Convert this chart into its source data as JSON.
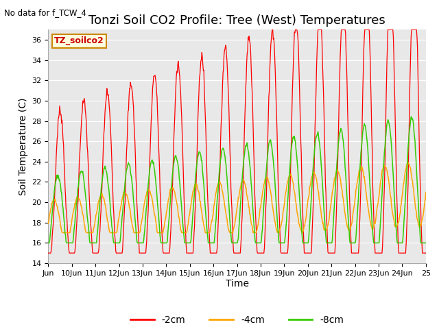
{
  "title": "Tonzi Soil CO2 Profile: Tree (West) Temperatures",
  "xlabel": "Time",
  "ylabel": "Soil Temperature (C)",
  "note": "No data for f_TCW_4",
  "box_label": "TZ_soilco2",
  "ylim": [
    14,
    37
  ],
  "yticks": [
    14,
    16,
    18,
    20,
    22,
    24,
    26,
    28,
    30,
    32,
    34,
    36
  ],
  "xtick_labels": [
    "Jun",
    "10Jun",
    "11Jun",
    "12Jun",
    "13Jun",
    "14Jun",
    "15Jun",
    "16Jun",
    "17Jun",
    "18Jun",
    "19Jun",
    "20Jun",
    "21Jun",
    "22Jun",
    "23Jun",
    "24Jun",
    "25"
  ],
  "legend_labels": [
    "-2cm",
    "-4cm",
    "-8cm"
  ],
  "legend_colors": [
    "#ff0000",
    "#ffa500",
    "#33cc00"
  ],
  "line_colors_2cm": "#ff0000",
  "line_colors_4cm": "#ffa500",
  "line_colors_8cm": "#33cc00",
  "fig_bg_color": "#ffffff",
  "plot_bg_color": "#e8e8e8",
  "grid_color": "#ffffff",
  "title_fontsize": 13,
  "label_fontsize": 10,
  "tick_fontsize": 8
}
